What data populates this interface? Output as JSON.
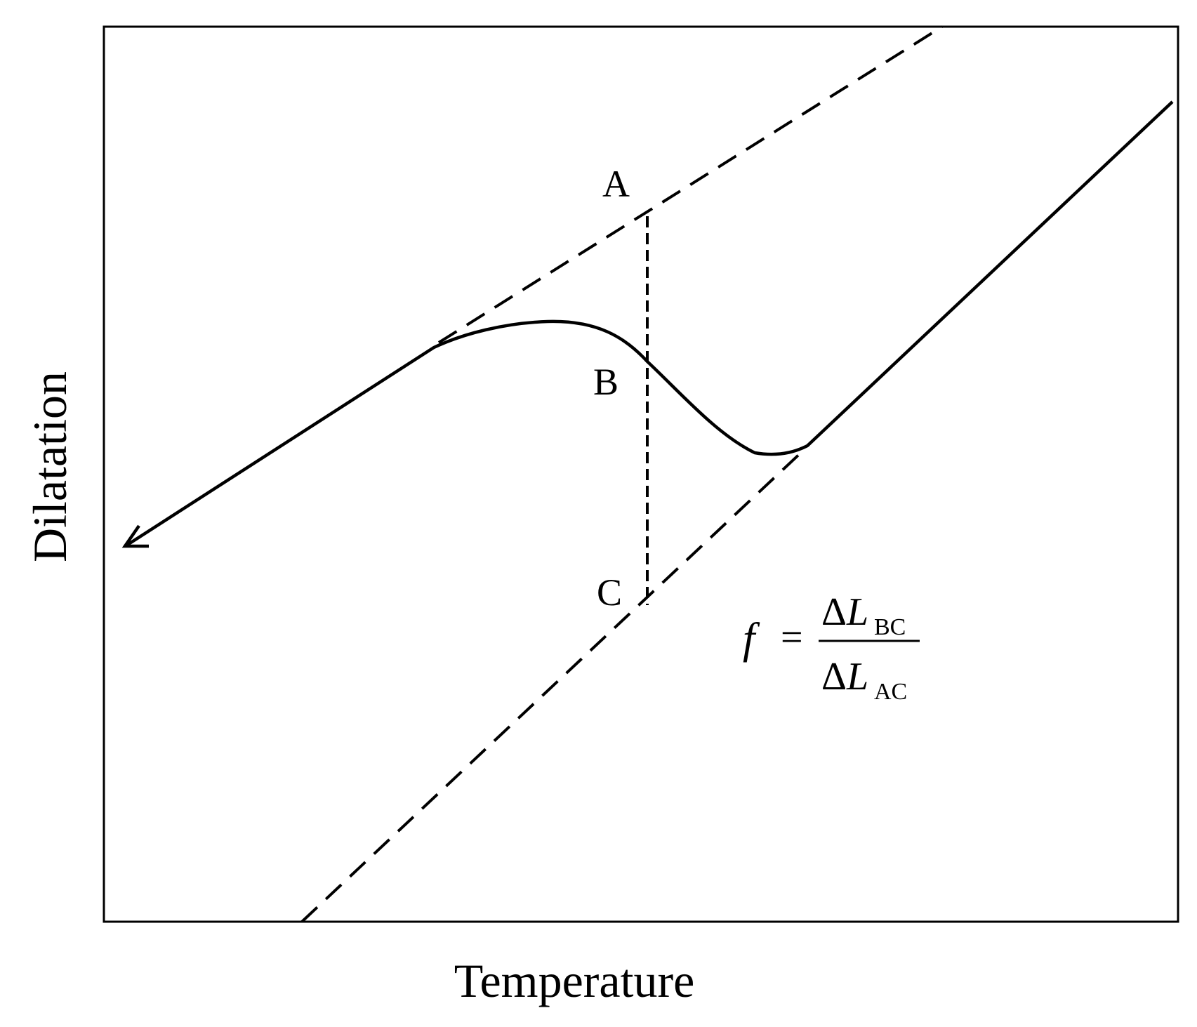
{
  "diagram": {
    "xlabel": "Temperature",
    "ylabel": "Dilatation",
    "points": {
      "a": "A",
      "b": "B",
      "c": "C"
    },
    "formula": {
      "lhs": "f",
      "equals": "=",
      "numerator_delta": "Δ",
      "numerator_var": "L",
      "numerator_sub": "BC",
      "denominator_delta": "Δ",
      "denominator_var": "L",
      "denominator_sub": "AC"
    },
    "colors": {
      "ink": "#000000",
      "background": "#ffffff"
    }
  }
}
